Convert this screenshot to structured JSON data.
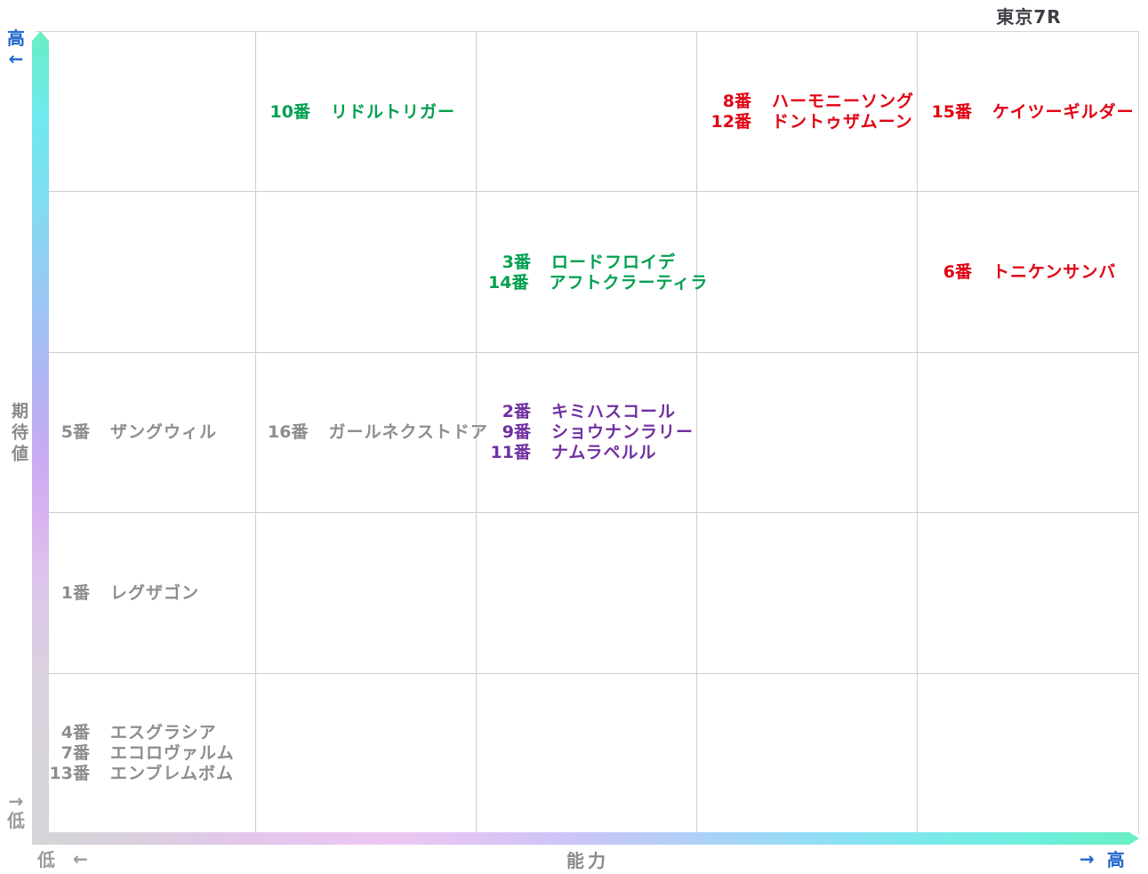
{
  "title": "東京7R",
  "y_axis": {
    "label": "期待値",
    "top_text": "高",
    "top_arrow": "←",
    "bottom_arrow": "→",
    "bottom_text": "低"
  },
  "x_axis": {
    "label": "能力",
    "left_text": "低",
    "left_arrow": "←",
    "right_arrow": "→",
    "right_text": "高"
  },
  "colors": {
    "green": "#00a050",
    "red": "#e10012",
    "purple": "#7030a0",
    "gray": "#8d8d8d",
    "axis_blue": "#2065cc",
    "axis_gray": "#8a8a8a",
    "grid_line": "#cdcdcd",
    "title_color": "#3e3e45",
    "bar_mint": "#69efc4",
    "bar_cyan": "#6ee9ee",
    "bar_blue": "#95ccf3",
    "bar_lavender": "#c7abf3",
    "bar_pink": "#ecc7f2",
    "bar_gray": "#d5d5d7"
  },
  "chart_data": {
    "type": "scatter",
    "title": "東京7R",
    "xlabel": "能力",
    "ylabel": "期待値",
    "x_range": [
      "低",
      "高"
    ],
    "y_range": [
      "低",
      "高"
    ],
    "grid_rows": 5,
    "grid_cols": 5,
    "grid_on": true,
    "note": "row 1 = top (期待値 high), col 1 = left (能力 low)",
    "groups": [
      {
        "row": 1,
        "col": 2,
        "color": "green",
        "horses": [
          {
            "num": "10番",
            "name": "リドルトリガー"
          }
        ]
      },
      {
        "row": 1,
        "col": 4,
        "color": "red",
        "horses": [
          {
            "num": "8番",
            "name": "ハーモニーソング"
          },
          {
            "num": "12番",
            "name": "ドントゥザムーン"
          }
        ]
      },
      {
        "row": 1,
        "col": 5,
        "color": "red",
        "horses": [
          {
            "num": "15番",
            "name": "ケイツーギルダー"
          }
        ]
      },
      {
        "row": 2,
        "col": 3,
        "color": "green",
        "horses": [
          {
            "num": "3番",
            "name": "ロードフロイデ"
          },
          {
            "num": "14番",
            "name": "アフトクラーティラ"
          }
        ]
      },
      {
        "row": 2,
        "col": 5,
        "color": "red",
        "horses": [
          {
            "num": "6番",
            "name": "トニケンサンバ"
          }
        ]
      },
      {
        "row": 3,
        "col": 1,
        "color": "gray",
        "horses": [
          {
            "num": "5番",
            "name": "ザングウィル"
          }
        ]
      },
      {
        "row": 3,
        "col": 2,
        "color": "gray",
        "horses": [
          {
            "num": "16番",
            "name": "ガールネクストドア"
          }
        ]
      },
      {
        "row": 3,
        "col": 3,
        "color": "purple",
        "horses": [
          {
            "num": "2番",
            "name": "キミハスコール"
          },
          {
            "num": "9番",
            "name": "ショウナンラリー"
          },
          {
            "num": "11番",
            "name": "ナムラペルル"
          }
        ]
      },
      {
        "row": 4,
        "col": 1,
        "color": "gray",
        "horses": [
          {
            "num": "1番",
            "name": "レグザゴン"
          }
        ]
      },
      {
        "row": 5,
        "col": 1,
        "color": "gray",
        "horses": [
          {
            "num": "4番",
            "name": "エスグラシア"
          },
          {
            "num": "7番",
            "name": "エコロヴァルム"
          },
          {
            "num": "13番",
            "name": "エンブレムボム"
          }
        ]
      }
    ]
  }
}
